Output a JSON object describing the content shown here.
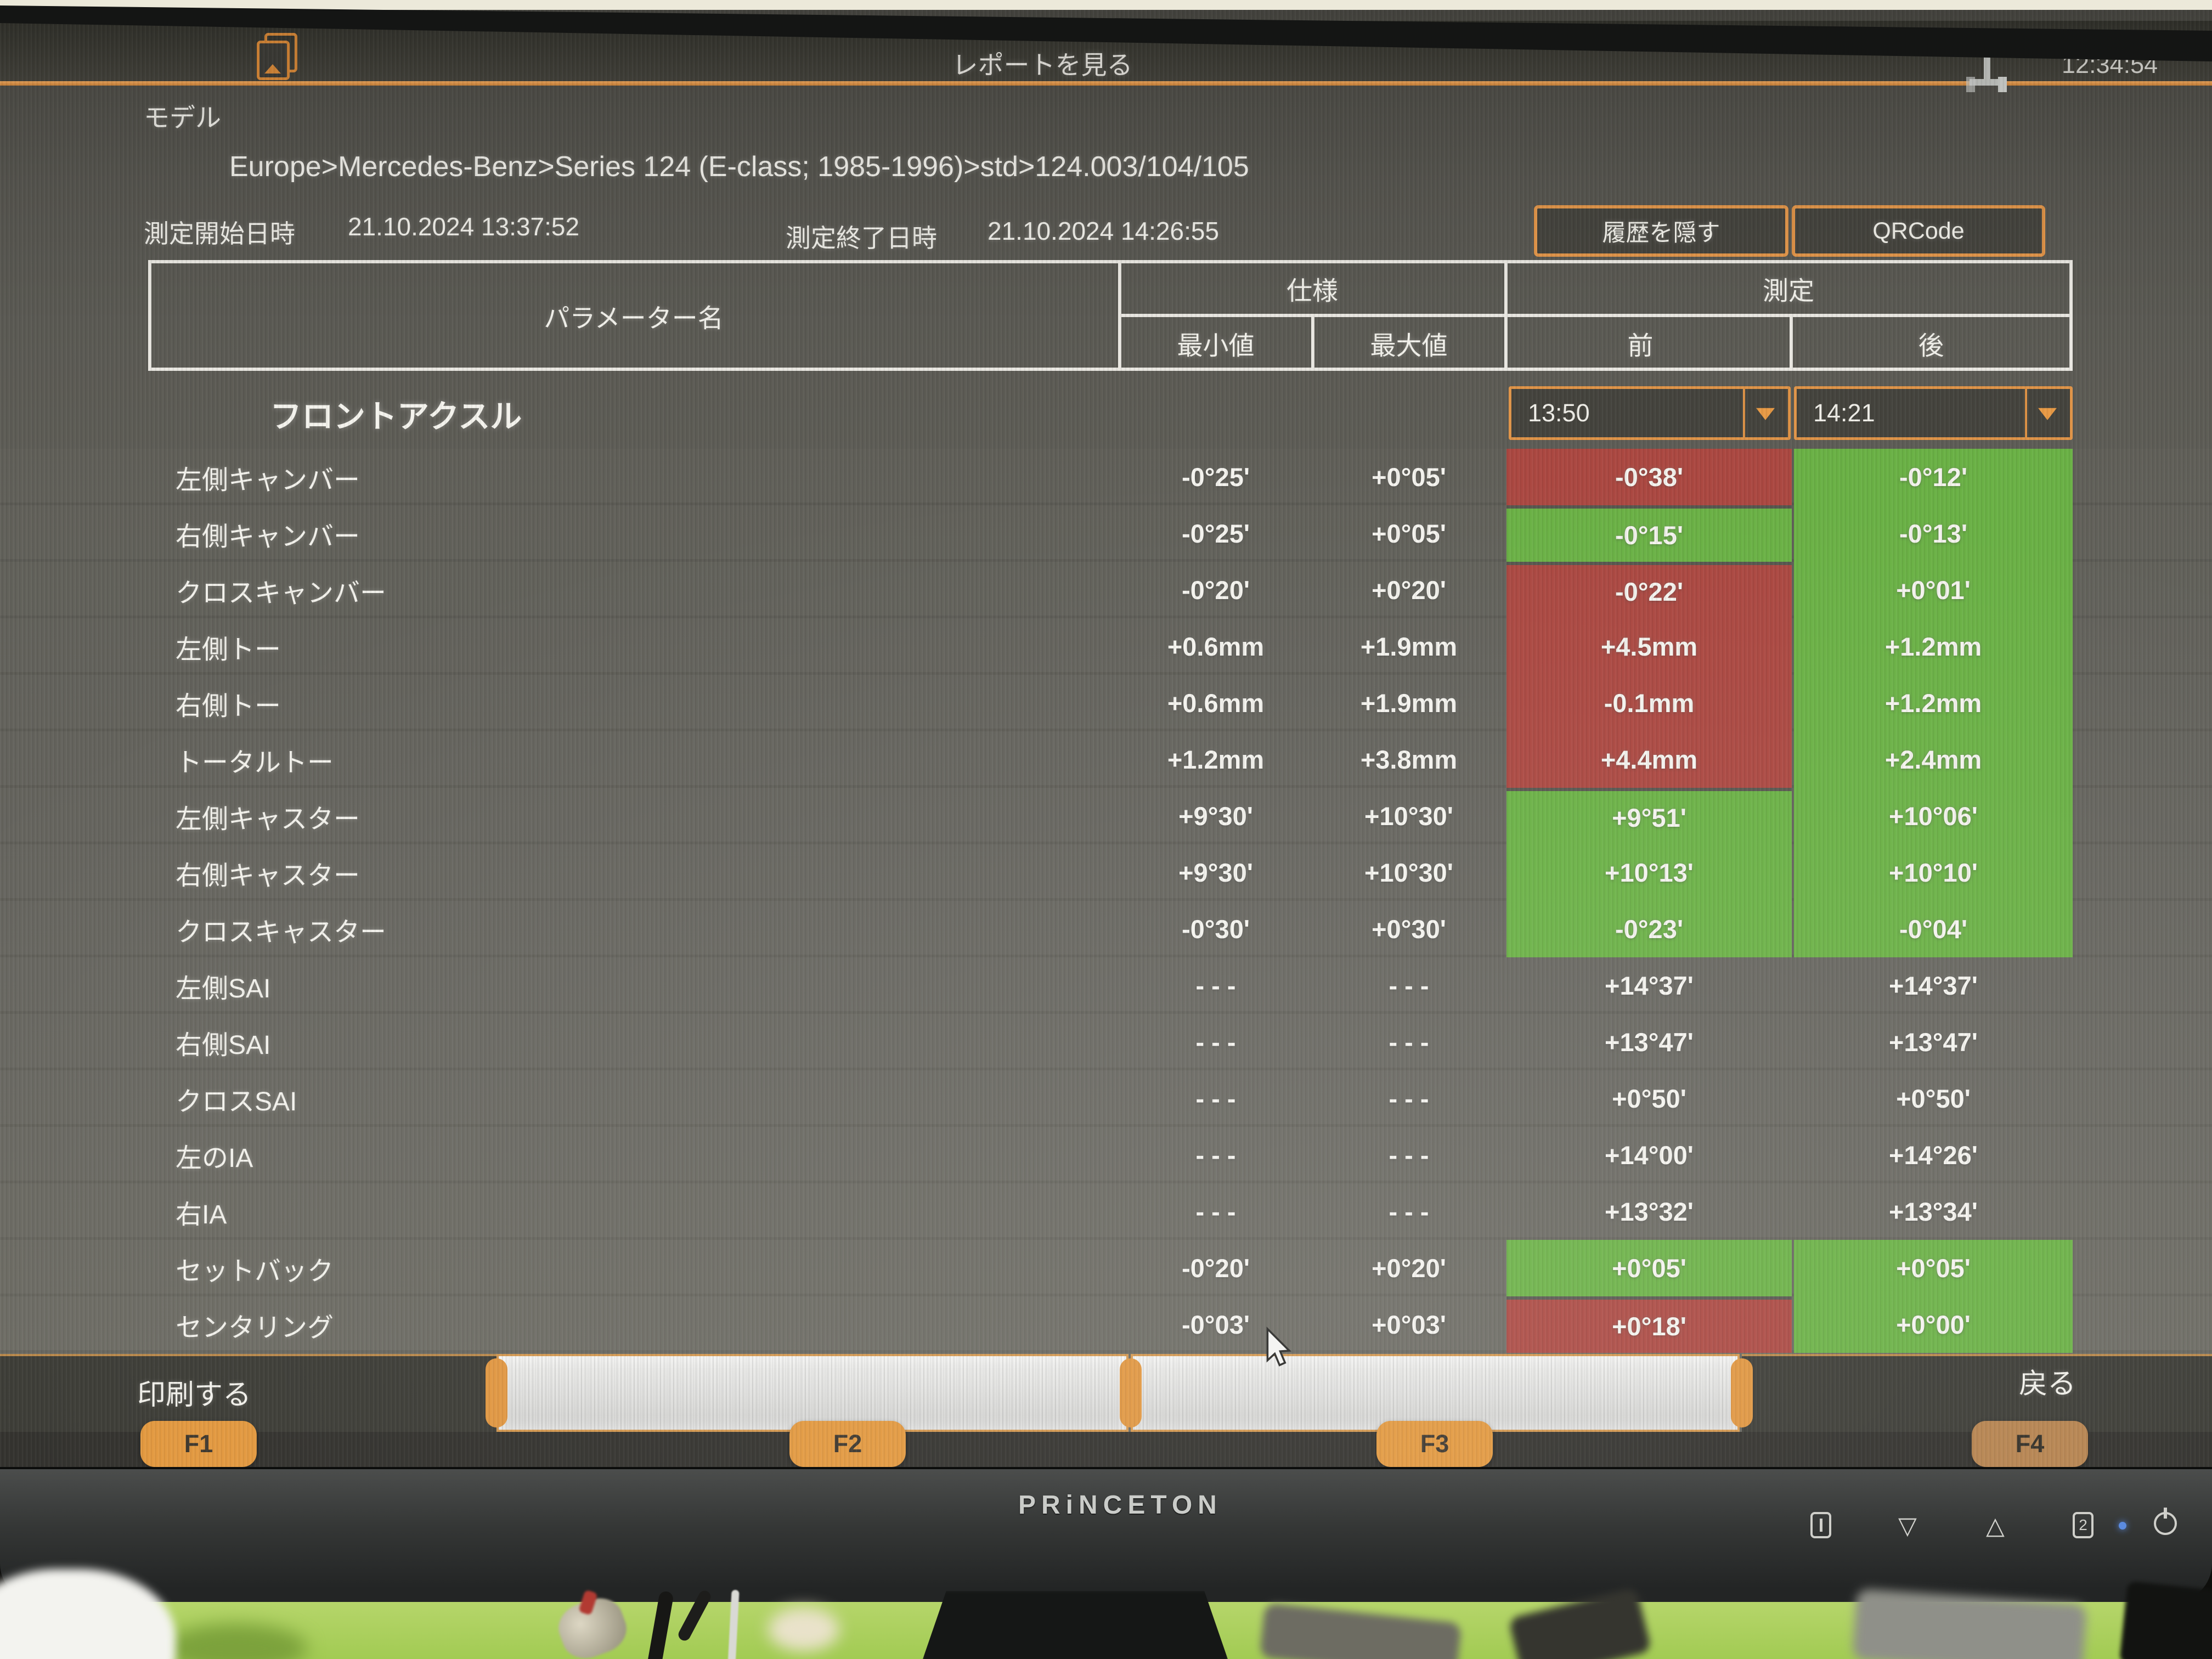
{
  "titlebar": {
    "title": "レポートを見る",
    "clock": "12:34:54"
  },
  "model": {
    "label": "モデル",
    "breadcrumb": "Europe>Mercedes-Benz>Series 124 (E-class; 1985-1996)>std>124.003/104/105"
  },
  "session": {
    "start_label": "測定開始日時",
    "start_value": "21.10.2024 13:37:52",
    "end_label": "測定終了日時",
    "end_value": "21.10.2024 14:26:55"
  },
  "actions": {
    "hide_history": "履歴を隠す",
    "qrcode": "QRCode"
  },
  "table": {
    "header": {
      "parameter": "パラメーター名",
      "spec": "仕様",
      "measurement": "測定",
      "min": "最小値",
      "max": "最大値",
      "before": "前",
      "after": "後"
    },
    "section": "フロントアクスル",
    "before_time": "13:50",
    "after_time": "14:21",
    "rows": [
      {
        "label": "左側キャンバー",
        "min": "-0°25'",
        "max": "+0°05'",
        "before": "-0°38'",
        "before_state": "ng",
        "after": "-0°12'",
        "after_state": "ok"
      },
      {
        "label": "右側キャンバー",
        "min": "-0°25'",
        "max": "+0°05'",
        "before": "-0°15'",
        "before_state": "ok",
        "after": "-0°13'",
        "after_state": "ok"
      },
      {
        "label": "クロスキャンバー",
        "min": "-0°20'",
        "max": "+0°20'",
        "before": "-0°22'",
        "before_state": "ng",
        "after": "+0°01'",
        "after_state": "ok"
      },
      {
        "label": "左側トー",
        "min": "+0.6mm",
        "max": "+1.9mm",
        "before": "+4.5mm",
        "before_state": "ng",
        "after": "+1.2mm",
        "after_state": "ok"
      },
      {
        "label": "右側トー",
        "min": "+0.6mm",
        "max": "+1.9mm",
        "before": "-0.1mm",
        "before_state": "ng",
        "after": "+1.2mm",
        "after_state": "ok"
      },
      {
        "label": "トータルトー",
        "min": "+1.2mm",
        "max": "+3.8mm",
        "before": "+4.4mm",
        "before_state": "ng",
        "after": "+2.4mm",
        "after_state": "ok"
      },
      {
        "label": "左側キャスター",
        "min": "+9°30'",
        "max": "+10°30'",
        "before": "+9°51'",
        "before_state": "ok",
        "after": "+10°06'",
        "after_state": "ok"
      },
      {
        "label": "右側キャスター",
        "min": "+9°30'",
        "max": "+10°30'",
        "before": "+10°13'",
        "before_state": "ok",
        "after": "+10°10'",
        "after_state": "ok"
      },
      {
        "label": "クロスキャスター",
        "min": "-0°30'",
        "max": "+0°30'",
        "before": "-0°23'",
        "before_state": "ok",
        "after": "-0°04'",
        "after_state": "ok"
      },
      {
        "label": "左側SAI",
        "min": "- - -",
        "max": "- - -",
        "before": "+14°37'",
        "before_state": "none",
        "after": "+14°37'",
        "after_state": "none"
      },
      {
        "label": "右側SAI",
        "min": "- - -",
        "max": "- - -",
        "before": "+13°47'",
        "before_state": "none",
        "after": "+13°47'",
        "after_state": "none"
      },
      {
        "label": "クロスSAI",
        "min": "- - -",
        "max": "- - -",
        "before": "+0°50'",
        "before_state": "none",
        "after": "+0°50'",
        "after_state": "none"
      },
      {
        "label": "左のIA",
        "min": "- - -",
        "max": "- - -",
        "before": "+14°00'",
        "before_state": "none",
        "after": "+14°26'",
        "after_state": "none"
      },
      {
        "label": "右IA",
        "min": "- - -",
        "max": "- - -",
        "before": "+13°32'",
        "before_state": "none",
        "after": "+13°34'",
        "after_state": "none"
      },
      {
        "label": "セットバック",
        "min": "-0°20'",
        "max": "+0°20'",
        "before": "+0°05'",
        "before_state": "ok",
        "after": "+0°05'",
        "after_state": "ok"
      },
      {
        "label": "センタリング",
        "min": "-0°03'",
        "max": "+0°03'",
        "before": "+0°18'",
        "before_state": "ng",
        "after": "+0°00'",
        "after_state": "ok"
      }
    ]
  },
  "function_bar": {
    "print": "印刷する",
    "back": "戻る",
    "f1": "F1",
    "f2": "F2",
    "f3": "F3",
    "f4": "F4"
  },
  "monitor": {
    "brand": "PRiNCETON",
    "button1": "1",
    "button2": "2"
  },
  "colors": {
    "accent_orange": "#e3964a",
    "ok_green": "#6ab145",
    "ng_red": "#ab4841"
  }
}
